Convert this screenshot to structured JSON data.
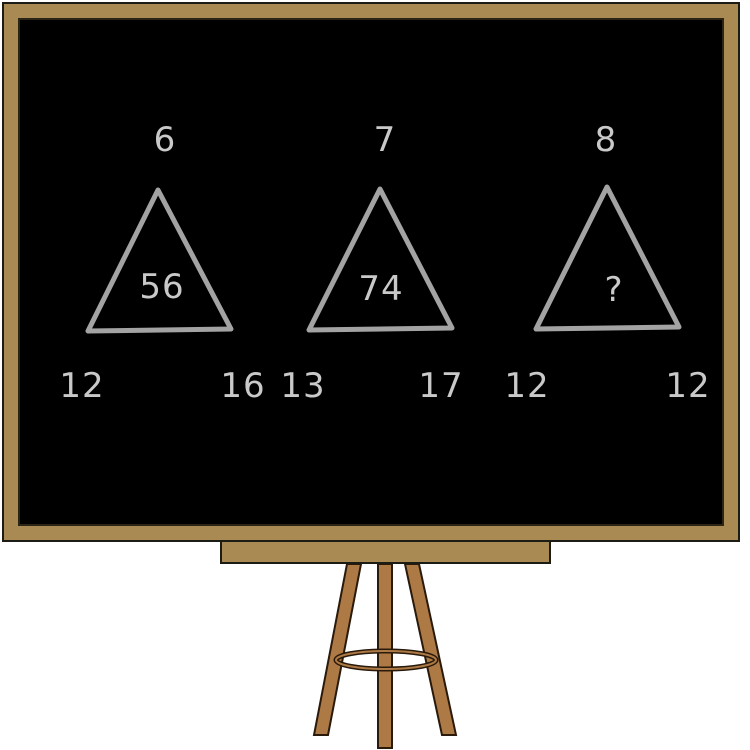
{
  "puzzle": {
    "groups": [
      {
        "top": "6",
        "center": "56",
        "left": "12",
        "right": "16"
      },
      {
        "top": "7",
        "center": "74",
        "left": "13",
        "right": "17"
      },
      {
        "top": "8",
        "center": "?",
        "left": "12",
        "right": "12"
      }
    ]
  },
  "colors": {
    "board": "#000000",
    "frame": "#a88a52",
    "chalk": "#c9c9c9",
    "triangle_stroke": "#a3a3a3",
    "easel_wood": "#ad7a45"
  }
}
